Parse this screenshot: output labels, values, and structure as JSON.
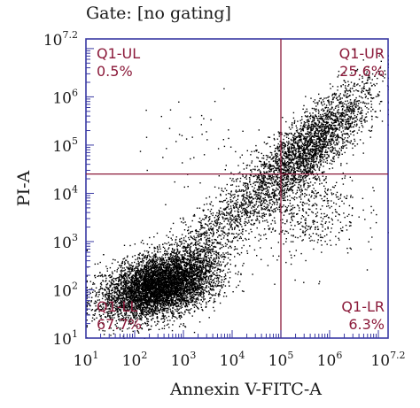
{
  "gate_label": "Gate: [no gating]",
  "colors": {
    "axis": "#3a3aa3",
    "quadrant_line": "#8b1a3a",
    "quadrant_text": "#8b1a3a",
    "dots": "#000000",
    "text": "#1a1a1a"
  },
  "chart_data": {
    "type": "scatter",
    "title": "Gate: [no gating]",
    "xlabel": "Annexin V-FITC-A",
    "ylabel": "PI-A",
    "x_scale": "log",
    "y_scale": "log",
    "xlim": [
      10,
      15848932
    ],
    "ylim": [
      10,
      15848932
    ],
    "x_ticks": [
      {
        "base": "10",
        "exp": "1"
      },
      {
        "base": "10",
        "exp": "2"
      },
      {
        "base": "10",
        "exp": "3"
      },
      {
        "base": "10",
        "exp": "4"
      },
      {
        "base": "10",
        "exp": "5"
      },
      {
        "base": "10",
        "exp": "6"
      },
      {
        "base": "10",
        "exp": "7.2"
      }
    ],
    "y_ticks": [
      {
        "base": "10",
        "exp": "1"
      },
      {
        "base": "10",
        "exp": "2"
      },
      {
        "base": "10",
        "exp": "3"
      },
      {
        "base": "10",
        "exp": "4"
      },
      {
        "base": "10",
        "exp": "5"
      },
      {
        "base": "10",
        "exp": "6"
      },
      {
        "base": "10",
        "exp": "7.2"
      }
    ],
    "quadrant_gate": {
      "x": 100000,
      "y": 25119
    },
    "quadrants": [
      {
        "name": "Q1-UL",
        "percent": "0.5%"
      },
      {
        "name": "Q1-UR",
        "percent": "25.6%"
      },
      {
        "name": "Q1-LL",
        "percent": "67.7%"
      },
      {
        "name": "Q1-LR",
        "percent": "6.3%"
      }
    ],
    "populations": [
      {
        "name": "live",
        "center_log": [
          2.5,
          2.1
        ],
        "spread_log": [
          0.65,
          0.4
        ],
        "fraction": 0.677
      },
      {
        "name": "early_apoptotic",
        "center_log": [
          5.4,
          3.7
        ],
        "spread_log": [
          0.6,
          0.5
        ],
        "fraction": 0.063
      },
      {
        "name": "late_apoptotic",
        "center_log": [
          5.7,
          5.1
        ],
        "spread_log": [
          0.8,
          0.65
        ],
        "fraction": 0.256
      },
      {
        "name": "necrotic",
        "center_log": [
          3.2,
          5.0
        ],
        "spread_log": [
          0.6,
          0.5
        ],
        "fraction": 0.005
      }
    ],
    "grid": false,
    "legend": "none"
  }
}
